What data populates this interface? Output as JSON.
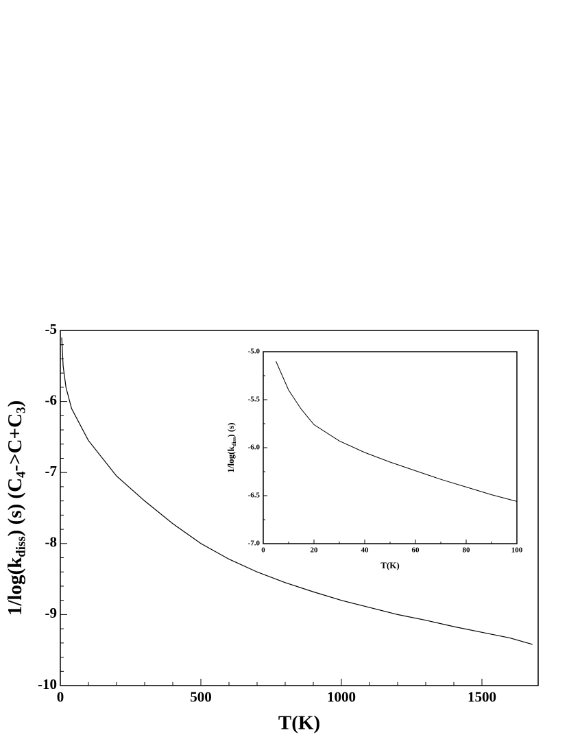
{
  "chart_data": [
    {
      "type": "line",
      "x_label": "T(K)",
      "y_label_parts": [
        "1/log(k",
        "diss",
        ") (s) (C",
        "4",
        "->C+C",
        "3",
        ")"
      ],
      "x": [
        5,
        10,
        20,
        40,
        100,
        200,
        300,
        400,
        500,
        600,
        700,
        800,
        900,
        1000,
        1100,
        1200,
        1300,
        1400,
        1500,
        1600,
        1680
      ],
      "series": [
        {
          "color": "#000000",
          "values": [
            -5.1,
            -5.5,
            -5.8,
            -6.1,
            -6.55,
            -7.05,
            -7.4,
            -7.72,
            -8.0,
            -8.22,
            -8.4,
            -8.55,
            -8.68,
            -8.8,
            -8.9,
            -9.0,
            -9.08,
            -9.17,
            -9.25,
            -9.33,
            -9.42
          ]
        }
      ],
      "xlim": [
        0,
        1700
      ],
      "xticks": [
        0,
        500,
        1000,
        1500
      ],
      "ylim": [
        -10,
        -5
      ],
      "yticks": [
        -10,
        -9,
        -8,
        -7,
        -6,
        -5
      ]
    },
    {
      "type": "line",
      "x_label": "T(K)",
      "y_label_parts": [
        "1/log(k",
        "diss",
        ") (s)"
      ],
      "x": [
        5,
        10,
        15,
        20,
        30,
        40,
        50,
        60,
        70,
        80,
        90,
        100
      ],
      "series": [
        {
          "color": "#000000",
          "values": [
            -5.1,
            -5.4,
            -5.6,
            -5.76,
            -5.93,
            -6.05,
            -6.15,
            -6.24,
            -6.33,
            -6.41,
            -6.49,
            -6.56
          ]
        }
      ],
      "xlim": [
        0,
        100
      ],
      "xticks": [
        0,
        20,
        40,
        60,
        80,
        100
      ],
      "ylim": [
        -7,
        -5
      ],
      "yticks": [
        {
          "value": -7,
          "label": "-7.0"
        },
        {
          "value": -6.5,
          "label": "-6.5"
        },
        {
          "value": -6,
          "label": "-6.0"
        },
        {
          "value": -5.5,
          "label": "-5.5"
        },
        {
          "value": -5,
          "label": "-5.0"
        }
      ]
    }
  ]
}
